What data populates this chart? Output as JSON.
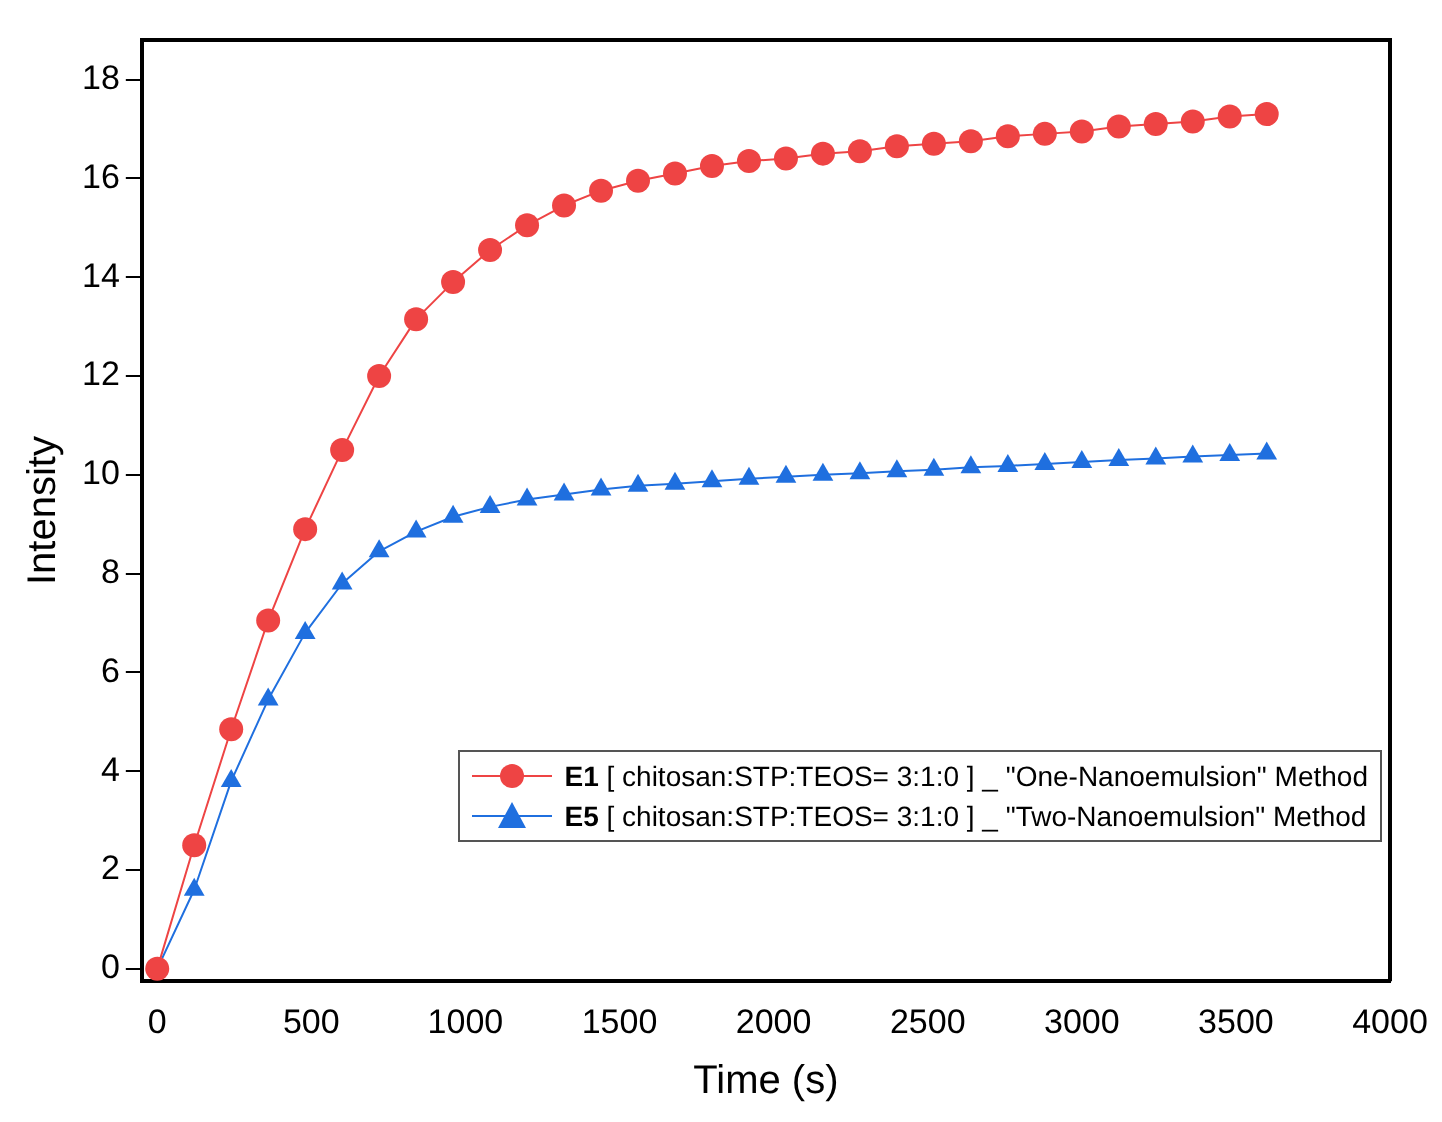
{
  "chart_data": {
    "type": "line",
    "xlabel": "Time (s)",
    "ylabel": "Intensity",
    "x": [
      0,
      120,
      240,
      360,
      480,
      600,
      720,
      840,
      960,
      1080,
      1200,
      1320,
      1440,
      1560,
      1680,
      1800,
      1920,
      2040,
      2160,
      2280,
      2400,
      2520,
      2640,
      2760,
      2880,
      3000,
      3120,
      3240,
      3360,
      3480,
      3600
    ],
    "series": [
      {
        "name": "E1 [ chitosan:STP:TEOS= 3:1:0 ] _ \"One-Nanoemulsion\" Method",
        "color": "#ee4444",
        "marker": "circle",
        "values": [
          0,
          2.5,
          4.85,
          7.05,
          8.9,
          10.5,
          12.0,
          13.15,
          13.9,
          14.55,
          15.05,
          15.45,
          15.75,
          15.95,
          16.1,
          16.25,
          16.35,
          16.4,
          16.5,
          16.55,
          16.65,
          16.7,
          16.75,
          16.85,
          16.9,
          16.95,
          17.05,
          17.1,
          17.15,
          17.25,
          17.3
        ]
      },
      {
        "name": "E5 [ chitosan:STP:TEOS= 3:1:0 ] _ \"Two-Nanoemulsion\" Method",
        "color": "#1f6fdf",
        "marker": "triangle",
        "values": [
          0,
          1.6,
          3.8,
          5.45,
          6.8,
          7.8,
          8.45,
          8.85,
          9.15,
          9.35,
          9.5,
          9.6,
          9.7,
          9.78,
          9.82,
          9.87,
          9.92,
          9.96,
          10.0,
          10.03,
          10.07,
          10.1,
          10.15,
          10.18,
          10.22,
          10.26,
          10.3,
          10.33,
          10.37,
          10.4,
          10.43
        ]
      }
    ],
    "xlim": [
      -50,
      4000
    ],
    "xticks": [
      0,
      500,
      1000,
      1500,
      2000,
      2500,
      3000,
      3500,
      4000
    ],
    "ylim": [
      -0.25,
      18.8
    ],
    "yticks": [
      0,
      2,
      4,
      6,
      8,
      10,
      12,
      14,
      16,
      18
    ],
    "grid": false,
    "legend": "bottom right",
    "line_style": "solid"
  }
}
